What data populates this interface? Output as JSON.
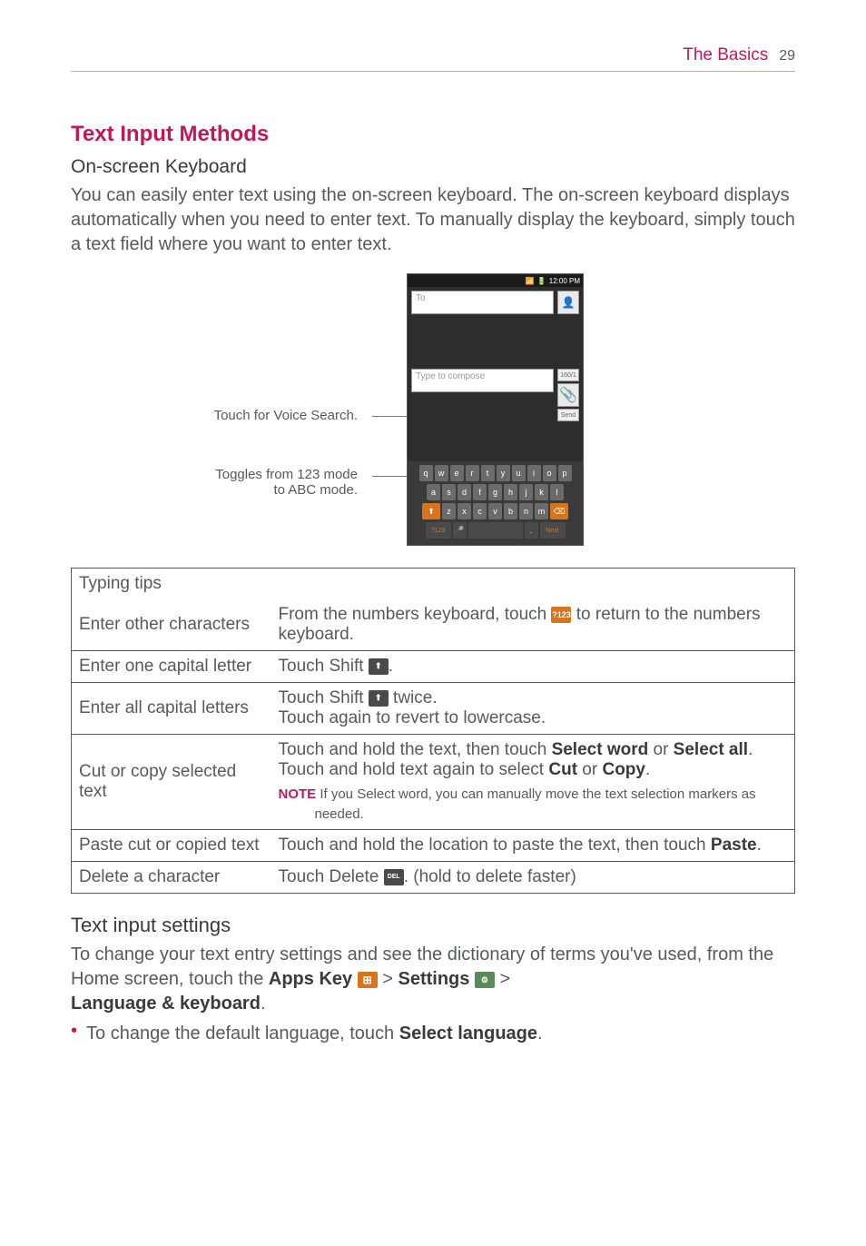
{
  "header": {
    "section": "The Basics",
    "page": "29"
  },
  "title": "Text Input Methods",
  "subtitle": "On-screen Keyboard",
  "intro": "You can easily enter text using the on-screen keyboard. The on-screen keyboard displays automatically when you need to enter text. To manually display the keyboard, simply touch a text field where you want to enter text.",
  "callouts": {
    "voice": "Touch for Voice Search.",
    "toggle_l1": "Toggles from 123 mode",
    "toggle_l2": "to ABC mode."
  },
  "phone": {
    "time": "12:00 PM",
    "to_placeholder": "To",
    "compose_placeholder": "Type to compose",
    "send": "Send",
    "count": "160/1",
    "row1": [
      "q",
      "w",
      "e",
      "r",
      "t",
      "y",
      "u",
      "i",
      "o",
      "p"
    ],
    "row2": [
      "a",
      "s",
      "d",
      "f",
      "g",
      "h",
      "j",
      "k",
      "l"
    ],
    "row3_shift": "⬆",
    "row3": [
      "z",
      "x",
      "c",
      "v",
      "b",
      "n",
      "m"
    ],
    "row3_del": "⌫",
    "row4_mode": "?123",
    "row4_mic": "🎤",
    "row4_dot": ".",
    "row4_next": "Next"
  },
  "table": {
    "header": "Typing tips",
    "rows": [
      {
        "label": "Enter other characters",
        "pre": "From the numbers keyboard, touch ",
        "icon_text": "?123",
        "post": " to return to the numbers keyboard."
      },
      {
        "label": "Enter one capital letter",
        "pre": "Touch Shift ",
        "icon_text": "⬆",
        "post": "."
      },
      {
        "label": "Enter all capital letters",
        "pre": "Touch Shift ",
        "icon_text": "⬆",
        "mid": " twice.",
        "line2": "Touch again to revert to lowercase."
      },
      {
        "label": "Cut or copy selected text",
        "line1_a": "Touch and hold the text, then touch ",
        "bold1": "Select word",
        "line1_b": " or ",
        "bold2": "Select all",
        "line1_c": ". Touch and hold text again to select ",
        "bold3": "Cut",
        "line1_d": " or ",
        "bold4": "Copy",
        "line1_e": ".",
        "note_label": "NOTE",
        "note_a": " If you ",
        "note_bold": "Select word",
        "note_b": ", you can manually move the text selection markers as needed."
      },
      {
        "label": "Paste cut or copied text",
        "pre": "Touch and hold the location to paste the text, then touch ",
        "bold1": "Paste",
        "post": "."
      },
      {
        "label": "Delete a character",
        "pre": "Touch Delete ",
        "icon_text": "DEL",
        "post": ". (hold to delete faster)"
      }
    ]
  },
  "settings_h": "Text input settings",
  "settings_p_a": "To change your text entry settings and see the dictionary of terms you've used, from the Home screen, touch the ",
  "apps_key": "Apps Key",
  "gt1": " > ",
  "settings_word": "Settings",
  "gt2": " > ",
  "lang_kb": "Language & keyboard",
  "period": ".",
  "bullet_a": "To change the default language, touch ",
  "bullet_bold": "Select language",
  "bullet_b": ".",
  "colors": {
    "accent": "#c2185b",
    "orange": "#d9741c",
    "text": "#58595b"
  }
}
